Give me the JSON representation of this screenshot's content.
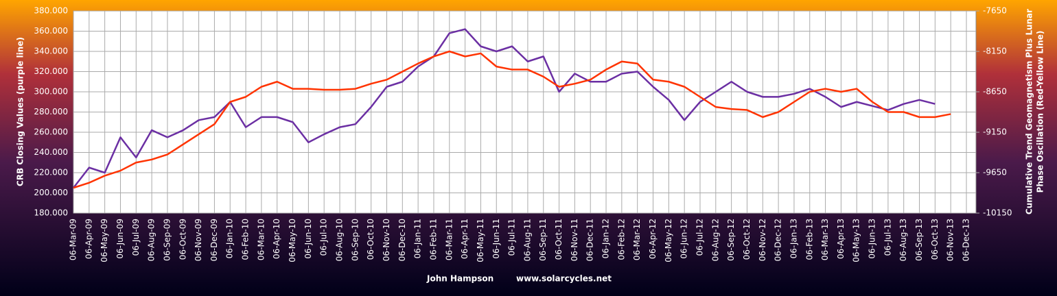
{
  "chart_data": {
    "type": "line",
    "ylabel": "CRB Closing Values (purple line)",
    "y2label": [
      "Cumulative Trend Geomagnetism Plus Lunar",
      "Phase Oscillation (Red-Yellow Line)"
    ],
    "credit": [
      "John Hampson",
      "www.solarcycles.net"
    ],
    "categories": [
      "06-Mar-09",
      "06-Apr-09",
      "06-May-09",
      "06-Jun-09",
      "06-Jul-09",
      "06-Aug-09",
      "06-Sep-09",
      "06-Oct-09",
      "06-Nov-09",
      "06-Dec-09",
      "06-Jan-10",
      "06-Feb-10",
      "06-Mar-10",
      "06-Apr-10",
      "06-May-10",
      "06-Jun-10",
      "06-Jul-10",
      "06-Aug-10",
      "06-Sep-10",
      "06-Oct-10",
      "06-Nov-10",
      "06-Dec-10",
      "06-Jan-11",
      "06-Feb-11",
      "06-Mar-11",
      "06-Apr-11",
      "06-May-11",
      "06-Jun-11",
      "06-Jul-11",
      "06-Aug-11",
      "06-Sep-11",
      "06-Oct-11",
      "06-Nov-11",
      "06-Dec-11",
      "06-Jan-12",
      "06-Feb-12",
      "06-Mar-12",
      "06-Apr-12",
      "06-May-12",
      "06-Jun-12",
      "06-Jul-12",
      "06-Aug-12",
      "06-Sep-12",
      "06-Oct-12",
      "06-Nov-12",
      "06-Dec-12",
      "06-Jan-13",
      "06-Feb-13",
      "06-Mar-13",
      "06-Apr-13",
      "06-May-13",
      "06-Jun-13",
      "06-Jul-13",
      "06-Aug-13",
      "06-Sep-13",
      "06-Oct-13",
      "06-Nov-13",
      "06-Dec-13"
    ],
    "series": [
      {
        "name": "CRB Closing Values",
        "color": "#6b2fa3",
        "axis": "y",
        "values": [
          205,
          225,
          220,
          255,
          235,
          262,
          255,
          262,
          272,
          275,
          290,
          265,
          275,
          275,
          270,
          250,
          258,
          265,
          268,
          285,
          305,
          310,
          325,
          335,
          358,
          362,
          345,
          340,
          345,
          330,
          335,
          300,
          318,
          310,
          310,
          318,
          320,
          305,
          292,
          272,
          290,
          300,
          310,
          300,
          295,
          295,
          298,
          303,
          295,
          285,
          290,
          286,
          282,
          288,
          292,
          288,
          null,
          null
        ]
      },
      {
        "name": "Cumulative Trend Geomagnetism Plus Lunar Phase Oscillation",
        "color": "#ff3300",
        "axis": "y2",
        "values": [
          -9837.5,
          -9775,
          -9687.5,
          -9625,
          -9525,
          -9487.5,
          -9425,
          -9300,
          -9175,
          -9050,
          -8775,
          -8712.5,
          -8587.5,
          -8525,
          -8612.5,
          -8612.5,
          -8625,
          -8625,
          -8612.5,
          -8550,
          -8500,
          -8400,
          -8300,
          -8212.5,
          -8150,
          -8212.5,
          -8175,
          -8337.5,
          -8375,
          -8375,
          -8462.5,
          -8587.5,
          -8550,
          -8500,
          -8375,
          -8275,
          -8300,
          -8500,
          -8525,
          -8587.5,
          -8712.5,
          -8837.5,
          -8862.5,
          -8875,
          -8962.5,
          -8900,
          -8775,
          -8650,
          -8612.5,
          -8650,
          -8612.5,
          -8775,
          -8900,
          -8900,
          -8962.5,
          -8962.5,
          -8925,
          null
        ]
      }
    ],
    "ylim": [
      180,
      380
    ],
    "yticks": [
      {
        "value": 180,
        "label": "180.000"
      },
      {
        "value": 200,
        "label": "200.000"
      },
      {
        "value": 220,
        "label": "220.000"
      },
      {
        "value": 240,
        "label": "240.000"
      },
      {
        "value": 260,
        "label": "260.000"
      },
      {
        "value": 280,
        "label": "280.000"
      },
      {
        "value": 300,
        "label": "300.000"
      },
      {
        "value": 320,
        "label": "320.000"
      },
      {
        "value": 340,
        "label": "340.000"
      },
      {
        "value": 360,
        "label": "360.000"
      },
      {
        "value": 380,
        "label": "380.000"
      }
    ],
    "y2lim": [
      -10150,
      -7650
    ],
    "y2ticks": [
      -10150,
      -9650,
      -9150,
      -8650,
      -8150,
      -7650
    ],
    "grid": true
  }
}
